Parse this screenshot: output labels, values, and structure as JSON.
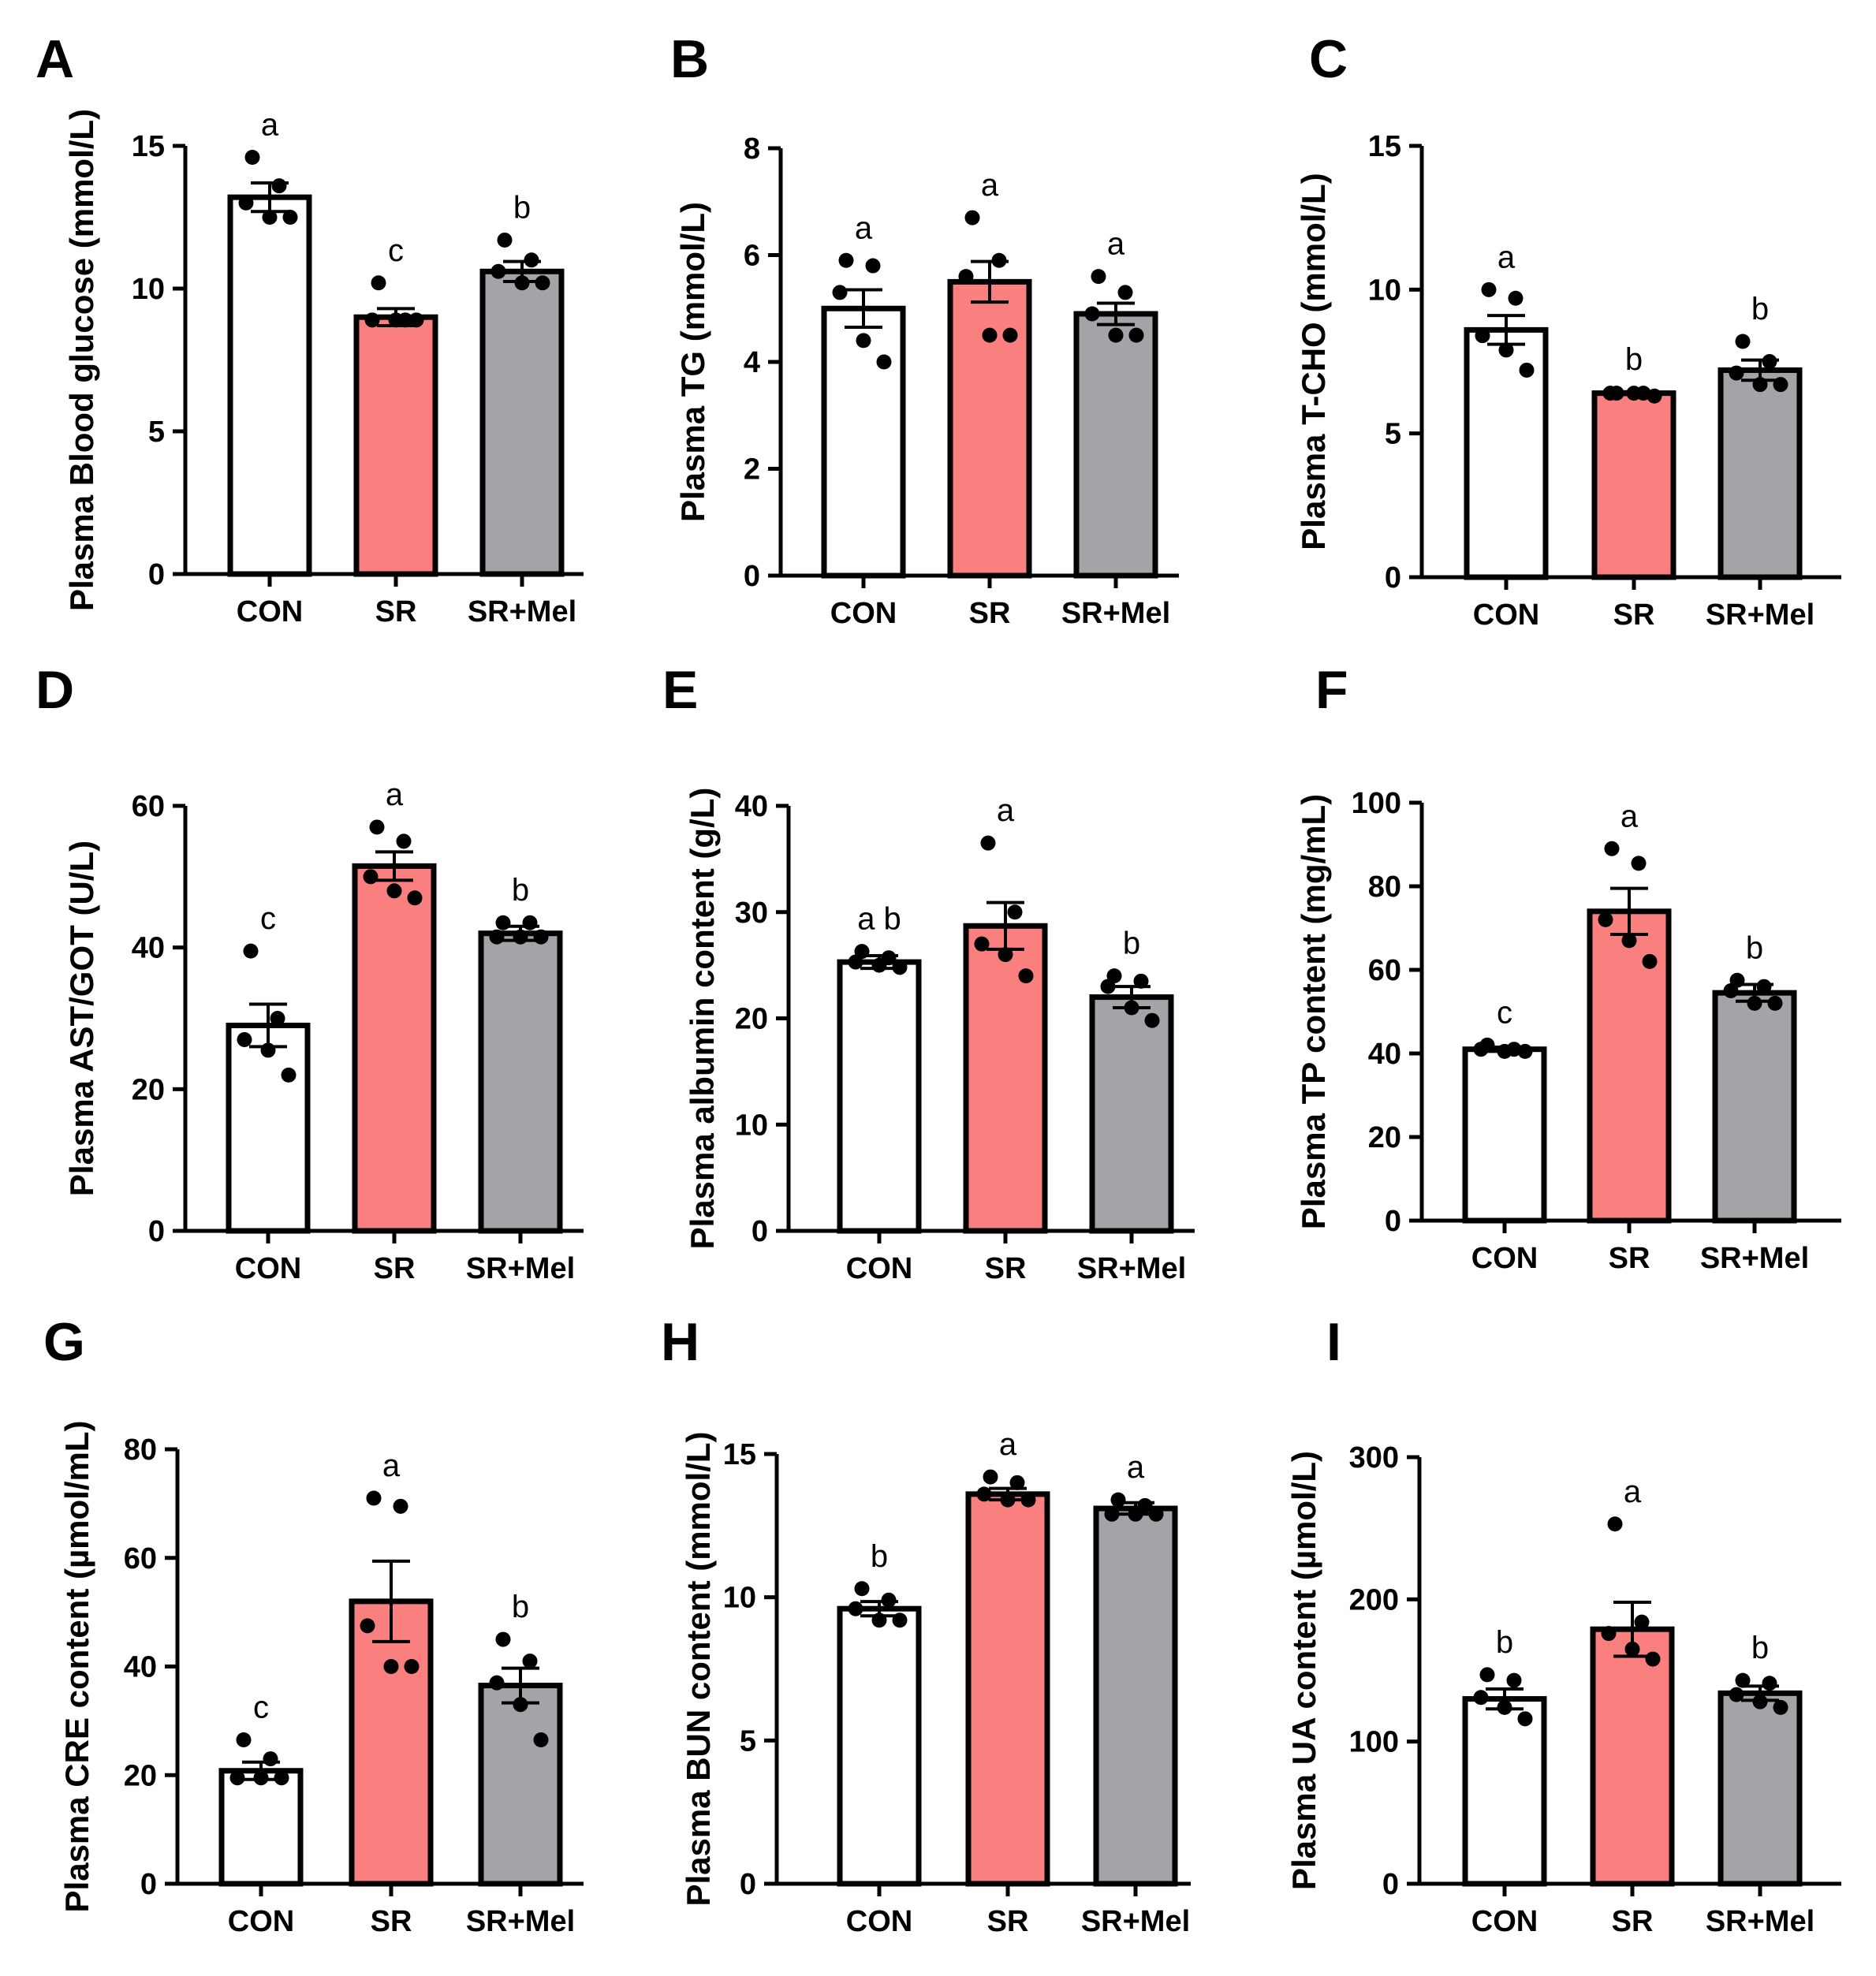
{
  "figure": {
    "colors": {
      "CON": "#ffffff",
      "SR": "#fa7f7f",
      "SR+Mel": "#a3a3a8",
      "outline": "#000000"
    }
  },
  "chart_data": [
    {
      "panel": "A",
      "type": "bar",
      "ylabel": "Plasma Blood glucose (mmol/L)",
      "categories": [
        "CON",
        "SR",
        "SR+Mel"
      ],
      "ylim": [
        0,
        15
      ],
      "yticks": [
        0,
        5,
        10,
        15
      ],
      "values": [
        13.2,
        9.0,
        10.6
      ],
      "sem": [
        0.5,
        0.3,
        0.35
      ],
      "points": [
        [
          14.6,
          13.6,
          13.0,
          12.5,
          12.5
        ],
        [
          10.2,
          8.9,
          8.9,
          8.9,
          8.9
        ],
        [
          11.7,
          11.0,
          10.6,
          10.2,
          10.2
        ]
      ],
      "significance": [
        "a",
        "c",
        "b"
      ]
    },
    {
      "panel": "B",
      "type": "bar",
      "ylabel": "Plasma TG (mmol/L)",
      "categories": [
        "CON",
        "SR",
        "SR+Mel"
      ],
      "ylim": [
        0,
        8
      ],
      "yticks": [
        0,
        2,
        4,
        6,
        8
      ],
      "values": [
        5.0,
        5.5,
        4.9
      ],
      "sem": [
        0.35,
        0.38,
        0.2
      ],
      "points": [
        [
          5.9,
          5.8,
          5.3,
          4.4,
          4.0
        ],
        [
          6.7,
          5.9,
          5.6,
          4.5,
          4.5
        ],
        [
          5.6,
          5.3,
          4.9,
          4.5,
          4.5
        ]
      ],
      "significance": [
        "a",
        "a",
        "a"
      ]
    },
    {
      "panel": "C",
      "type": "bar",
      "ylabel": "Plasma T-CHO (mmol/L)",
      "categories": [
        "CON",
        "SR",
        "SR+Mel"
      ],
      "ylim": [
        0,
        15
      ],
      "yticks": [
        0,
        5,
        10,
        15
      ],
      "values": [
        8.6,
        6.4,
        7.2
      ],
      "sem": [
        0.5,
        0.05,
        0.35
      ],
      "points": [
        [
          10.0,
          9.7,
          8.4,
          7.9,
          7.2
        ],
        [
          6.4,
          6.4,
          6.4,
          6.4,
          6.3
        ],
        [
          8.2,
          7.5,
          7.1,
          6.7,
          6.7
        ]
      ],
      "significance": [
        "a",
        "b",
        "b"
      ]
    },
    {
      "panel": "D",
      "type": "bar",
      "ylabel": "Plasma AST/GOT (U/L)",
      "categories": [
        "CON",
        "SR",
        "SR+Mel"
      ],
      "ylim": [
        0,
        60
      ],
      "yticks": [
        0,
        20,
        40,
        60
      ],
      "values": [
        29,
        51.5,
        42
      ],
      "sem": [
        3,
        2,
        1
      ],
      "points": [
        [
          39.5,
          30,
          27,
          25.5,
          22
        ],
        [
          57,
          55,
          50,
          48,
          47
        ],
        [
          43.5,
          43.5,
          41.5,
          41.5,
          41.5
        ]
      ],
      "significance": [
        "c",
        "a",
        "b"
      ]
    },
    {
      "panel": "E",
      "type": "bar",
      "ylabel": "Plasma albumin content (g/L)",
      "categories": [
        "CON",
        "SR",
        "SR+Mel"
      ],
      "ylim": [
        0,
        40
      ],
      "yticks": [
        0,
        10,
        20,
        30,
        40
      ],
      "values": [
        25.3,
        28.7,
        22.0
      ],
      "sem": [
        0.6,
        2.2,
        1.0
      ],
      "points": [
        [
          26.3,
          25.7,
          25.3,
          25.0,
          24.8
        ],
        [
          36.5,
          30.0,
          27.0,
          26.0,
          24.0
        ],
        [
          24.0,
          23.5,
          23.0,
          21.0,
          19.8
        ]
      ],
      "significance": [
        "a b",
        "a",
        "b"
      ]
    },
    {
      "panel": "F",
      "type": "bar",
      "ylabel": "Plasma TP content (mg/mL)",
      "categories": [
        "CON",
        "SR",
        "SR+Mel"
      ],
      "ylim": [
        0,
        100
      ],
      "yticks": [
        0,
        20,
        40,
        60,
        80,
        100
      ],
      "values": [
        41,
        74,
        54.5
      ],
      "sem": [
        0.5,
        5.5,
        2
      ],
      "points": [
        [
          42,
          41,
          41,
          40.5,
          40.5
        ],
        [
          89,
          85.5,
          72,
          67,
          62
        ],
        [
          57.5,
          56,
          55,
          52,
          52
        ]
      ],
      "significance": [
        "c",
        "a",
        "b"
      ]
    },
    {
      "panel": "G",
      "type": "bar",
      "ylabel": "Plasma CRE content (µmol/mL)",
      "categories": [
        "CON",
        "SR",
        "SR+Mel"
      ],
      "ylim": [
        0,
        80
      ],
      "yticks": [
        0,
        20,
        40,
        60,
        80
      ],
      "values": [
        20.8,
        52,
        36.5
      ],
      "sem": [
        1.6,
        7.4,
        3.2
      ],
      "points": [
        [
          26.5,
          23,
          19.5,
          19.5,
          19.5
        ],
        [
          71,
          69.5,
          47.5,
          40,
          40
        ],
        [
          45,
          41,
          37,
          33,
          26.5
        ]
      ],
      "significance": [
        "c",
        "a",
        "b"
      ]
    },
    {
      "panel": "H",
      "type": "bar",
      "ylabel": "Plasma BUN content (mmol/L)",
      "categories": [
        "CON",
        "SR",
        "SR+Mel"
      ],
      "ylim": [
        0,
        15
      ],
      "yticks": [
        0,
        5,
        10,
        15
      ],
      "values": [
        9.6,
        13.6,
        13.1
      ],
      "sem": [
        0.25,
        0.2,
        0.2
      ],
      "points": [
        [
          10.3,
          9.9,
          9.6,
          9.2,
          9.2
        ],
        [
          14.2,
          14.0,
          13.6,
          13.4,
          13.4
        ],
        [
          13.4,
          13.2,
          12.9,
          12.9,
          12.9
        ]
      ],
      "significance": [
        "b",
        "a",
        "a"
      ]
    },
    {
      "panel": "I",
      "type": "bar",
      "ylabel": "Plasma UA content (µmol/L)",
      "categories": [
        "CON",
        "SR",
        "SR+Mel"
      ],
      "ylim": [
        0,
        300
      ],
      "yticks": [
        0,
        100,
        200,
        300
      ],
      "values": [
        130,
        179,
        134
      ],
      "sem": [
        7,
        19,
        5
      ],
      "points": [
        [
          147,
          143,
          131,
          124,
          116
        ],
        [
          253,
          184,
          176,
          165,
          158
        ],
        [
          143,
          141,
          133,
          128,
          124
        ]
      ],
      "significance": [
        "b",
        "a",
        "b"
      ]
    }
  ]
}
